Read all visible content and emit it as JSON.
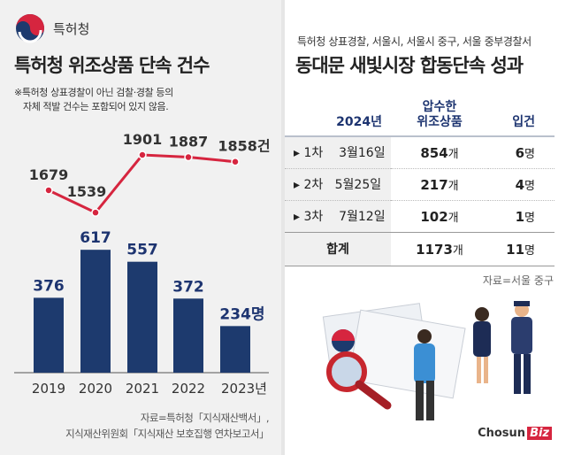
{
  "left": {
    "org_name": "특허청",
    "title": "특허청 위조상품 단속 건수",
    "note_line1": "※특허청 상표경찰이 아닌 검찰·경찰 등의",
    "note_line2": "자체 적발 건수는 포함되어 있지 않음.",
    "source_line1": "자료=특허청「지식재산백서」,",
    "source_line2": "지식재산위원회「지식재산 보호집행 연차보고서」"
  },
  "chart_data": [
    {
      "type": "line",
      "categories": [
        "2019",
        "2020",
        "2021",
        "2022",
        "2023"
      ],
      "values": [
        1679,
        1539,
        1901,
        1887,
        1858
      ],
      "value_labels": [
        "1679",
        "1539",
        "1901",
        "1887",
        "1858건"
      ],
      "color": "#d6253f"
    },
    {
      "type": "bar",
      "categories": [
        "2019",
        "2020",
        "2021",
        "2022",
        "2023"
      ],
      "category_labels": [
        "2019",
        "2020",
        "2021",
        "2022",
        "2023년"
      ],
      "values": [
        376,
        617,
        557,
        372,
        234
      ],
      "value_labels": [
        "376",
        "617",
        "557",
        "372",
        "234명"
      ],
      "color": "#1d3a6e"
    }
  ],
  "right": {
    "subtitle": "특허청 상표경찰, 서울시, 서울시 중구, 서울 중부경찰서",
    "title": "동대문 새빛시장 합동단속 성과",
    "headers": [
      "2024년",
      "압수한",
      "위조상품",
      "입건"
    ],
    "rows": [
      {
        "round": "1차",
        "date": "3월16일",
        "items": "854",
        "items_unit": "개",
        "people": "6",
        "people_unit": "명"
      },
      {
        "round": "2차",
        "date": "5월25일",
        "items": "217",
        "items_unit": "개",
        "people": "4",
        "people_unit": "명"
      },
      {
        "round": "3차",
        "date": "7월12일",
        "items": "102",
        "items_unit": "개",
        "people": "1",
        "people_unit": "명"
      }
    ],
    "total": {
      "label": "합계",
      "items": "1173",
      "items_unit": "개",
      "people": "11",
      "people_unit": "명"
    },
    "source": "자료=서울 중구",
    "logo_text": "Chosun",
    "logo_badge": "Biz"
  }
}
